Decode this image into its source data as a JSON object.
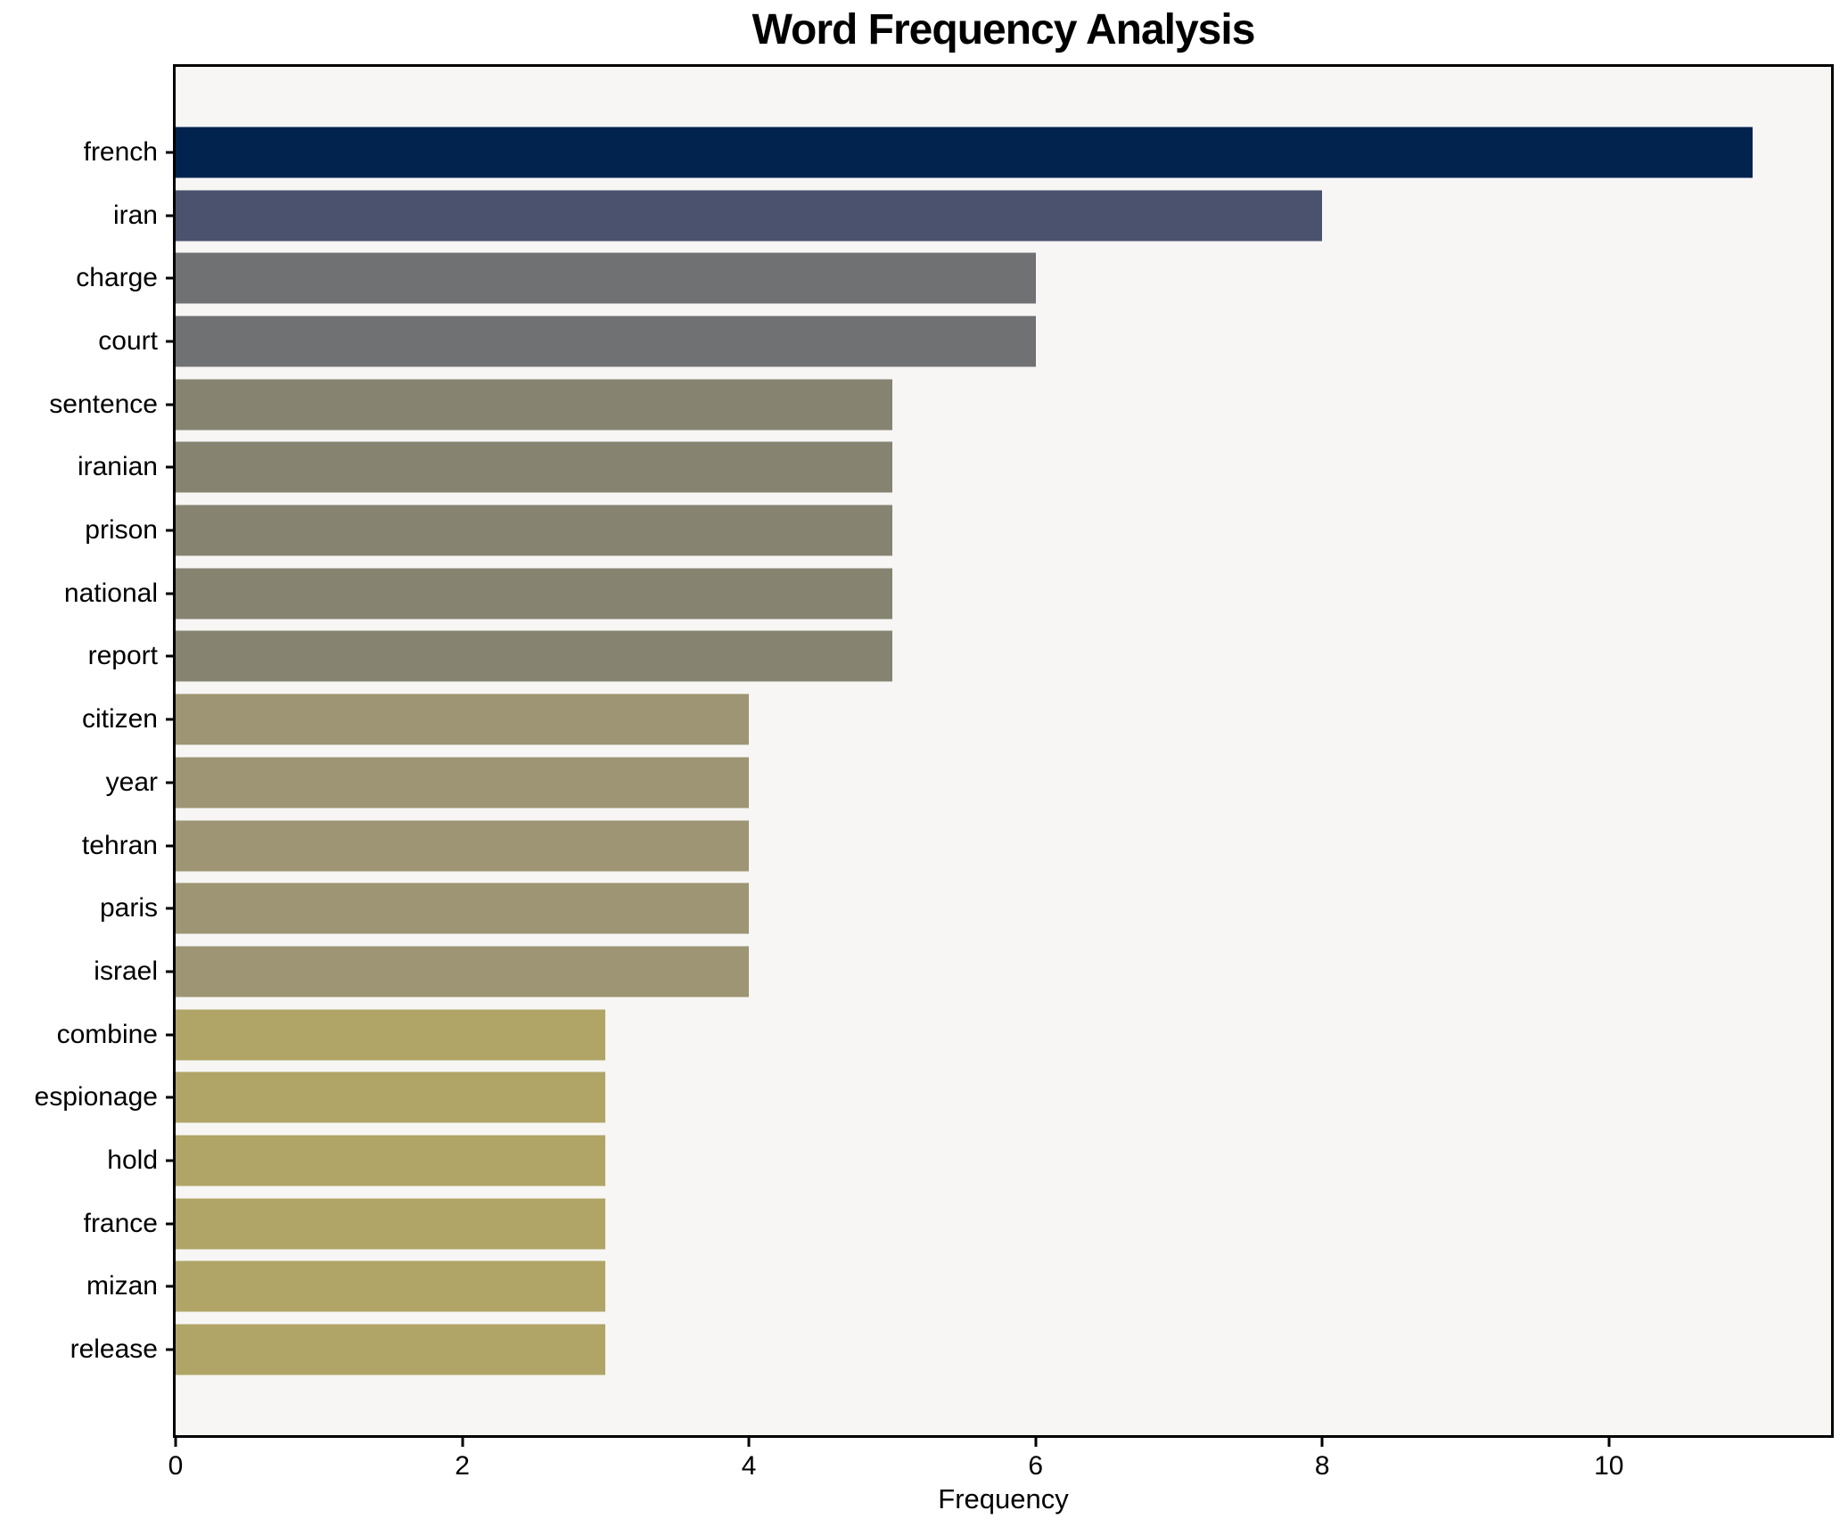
{
  "figure": {
    "background": "#ffffff",
    "plot_background": "#f7f6f5",
    "spine_color": "#000000",
    "text_color": "#000000"
  },
  "chart_data": {
    "type": "bar",
    "orientation": "horizontal",
    "title": "Word Frequency Analysis",
    "xlabel": "Frequency",
    "ylabel": "",
    "categories": [
      "french",
      "iran",
      "charge",
      "court",
      "sentence",
      "iranian",
      "prison",
      "national",
      "report",
      "citizen",
      "year",
      "tehran",
      "paris",
      "israel",
      "combine",
      "espionage",
      "hold",
      "france",
      "mizan",
      "release"
    ],
    "values": [
      11,
      8,
      6,
      6,
      5,
      5,
      5,
      5,
      5,
      4,
      4,
      4,
      4,
      4,
      3,
      3,
      3,
      3,
      3,
      3
    ],
    "bar_colors": [
      "#02234e",
      "#4a526e",
      "#707173",
      "#707173",
      "#868471",
      "#868471",
      "#868471",
      "#868471",
      "#868471",
      "#9d9573",
      "#9d9573",
      "#9d9573",
      "#9d9573",
      "#9d9573",
      "#b0a566",
      "#b0a566",
      "#b0a566",
      "#b0a566",
      "#b0a566",
      "#b0a566"
    ],
    "x_ticks": [
      "0",
      "2",
      "4",
      "6",
      "8",
      "10"
    ],
    "x_tick_values": [
      0,
      2,
      4,
      6,
      8,
      10
    ],
    "xlim": [
      0,
      11.55
    ],
    "grid": false,
    "legend": null,
    "bar_height_fraction": 0.8
  }
}
